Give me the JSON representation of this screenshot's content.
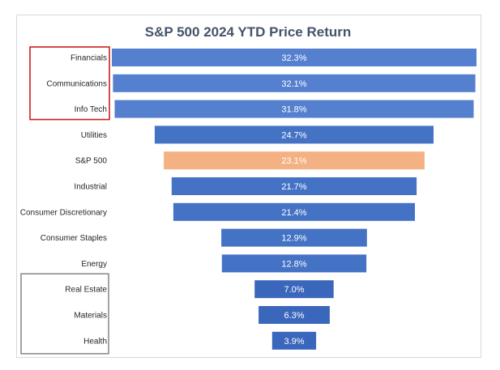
{
  "chart_data": {
    "type": "bar",
    "orientation": "horizontal",
    "layout": "funnel",
    "title": "S&P 500 2024 YTD Price Return",
    "xlabel": "",
    "ylabel": "",
    "unit": "%",
    "legend": "none",
    "grid": false,
    "categories": [
      "Financials",
      "Communications",
      "Info Tech",
      "Utilities",
      "S&P 500",
      "Industrial",
      "Consumer Discretionary",
      "Consumer Staples",
      "Energy",
      "Real Estate",
      "Materials",
      "Health"
    ],
    "values": [
      32.3,
      32.1,
      31.8,
      24.7,
      23.1,
      21.7,
      21.4,
      12.9,
      12.8,
      7.0,
      6.3,
      3.9
    ],
    "data_labels": [
      "32.3%",
      "32.1%",
      "31.8%",
      "24.7%",
      "23.1%",
      "21.7%",
      "21.4%",
      "12.9%",
      "12.8%",
      "7.0%",
      "6.3%",
      "3.9%"
    ],
    "colors": {
      "top_group": "#5580cf",
      "middle_group": "#4472c4",
      "bottom_group": "#3a66bb",
      "benchmark": "#f4b183",
      "top_box": "#cc1f1f",
      "bottom_box": "#8c8c8c"
    },
    "highlight": {
      "benchmark": "S&P 500",
      "top_box_categories": [
        "Financials",
        "Communications",
        "Info Tech"
      ],
      "bottom_box_categories": [
        "Real Estate",
        "Materials",
        "Health"
      ]
    }
  }
}
